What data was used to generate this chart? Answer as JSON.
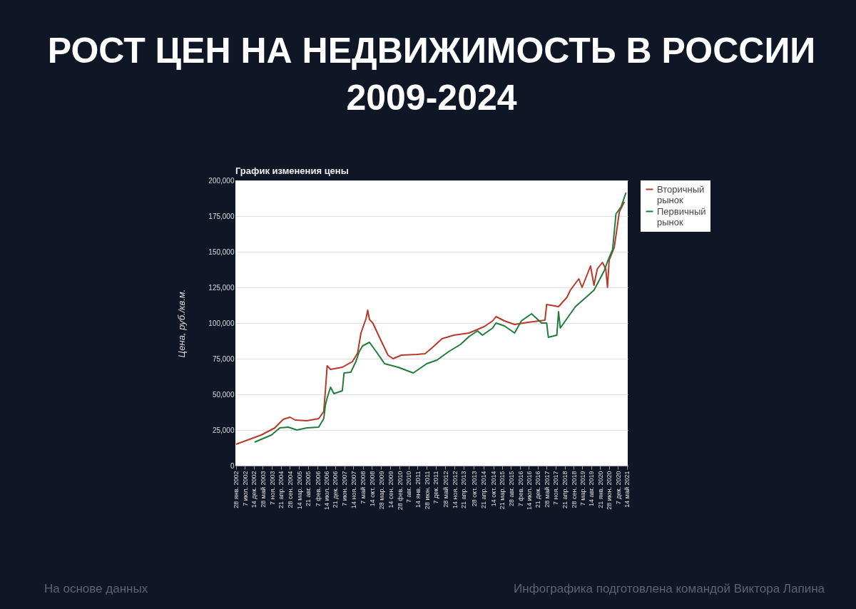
{
  "chart_data": {
    "type": "line",
    "title": "РОСТ ЦЕН НА НЕДВИЖИМОСТЬ В РОССИИ 2009-2024",
    "subtitle": "График изменения цены",
    "ylabel": "Цена, руб./кв.м.",
    "annotations": [
      "На основе данных",
      "Инфографика подготовлена командой Виктора Лапина"
    ],
    "legend": "top right",
    "grid": "y",
    "line_style": "solid",
    "marker": "none",
    "xlim": [
      "2002-01-20",
      "2021-06-01"
    ],
    "ylim": [
      0,
      200000
    ],
    "yticks": [
      {
        "value": 0,
        "label": "0"
      },
      {
        "value": 25000,
        "label": "25,000"
      },
      {
        "value": 50000,
        "label": "50,000"
      },
      {
        "value": 75000,
        "label": "75,000"
      },
      {
        "value": 100000,
        "label": "100,000"
      },
      {
        "value": 125000,
        "label": "125,000"
      },
      {
        "value": 150000,
        "label": "150,000"
      },
      {
        "value": 175000,
        "label": "175,000"
      },
      {
        "value": 200000,
        "label": "200,000"
      }
    ],
    "xticks": [
      {
        "value": "2002-01-28",
        "label": "28 янв. 2002"
      },
      {
        "value": "2002-07-07",
        "label": "7 июл. 2002"
      },
      {
        "value": "2002-12-14",
        "label": "14 дек. 2002"
      },
      {
        "value": "2003-05-28",
        "label": "28 май 2003"
      },
      {
        "value": "2003-11-07",
        "label": "7 ноя. 2003"
      },
      {
        "value": "2004-04-21",
        "label": "21 апр. 2004"
      },
      {
        "value": "2004-09-28",
        "label": "28 сен. 2004"
      },
      {
        "value": "2005-03-14",
        "label": "14 мар. 2005"
      },
      {
        "value": "2005-08-21",
        "label": "21 авг. 2005"
      },
      {
        "value": "2006-02-07",
        "label": "7 фев. 2006"
      },
      {
        "value": "2006-07-14",
        "label": "14 июл. 2006"
      },
      {
        "value": "2006-12-21",
        "label": "21 дек. 2006"
      },
      {
        "value": "2007-06-07",
        "label": "7 июн. 2007"
      },
      {
        "value": "2007-11-14",
        "label": "14 ноя. 2007"
      },
      {
        "value": "2008-05-07",
        "label": "7 май 2008"
      },
      {
        "value": "2008-10-14",
        "label": "14 окт. 2008"
      },
      {
        "value": "2009-03-28",
        "label": "28 мар. 2009"
      },
      {
        "value": "2009-09-14",
        "label": "14 сен. 2009"
      },
      {
        "value": "2010-02-28",
        "label": "28 фев. 2010"
      },
      {
        "value": "2010-08-07",
        "label": "7 авг. 2010"
      },
      {
        "value": "2011-01-14",
        "label": "14 янв. 2011"
      },
      {
        "value": "2011-06-28",
        "label": "28 июн. 2011"
      },
      {
        "value": "2011-12-07",
        "label": "7 дек. 2011"
      },
      {
        "value": "2012-05-28",
        "label": "28 май 2012"
      },
      {
        "value": "2012-11-14",
        "label": "14 ноя. 2012"
      },
      {
        "value": "2013-04-21",
        "label": "21 апр. 2013"
      },
      {
        "value": "2013-10-28",
        "label": "28 окт. 2013"
      },
      {
        "value": "2014-04-21",
        "label": "21 апр. 2014"
      },
      {
        "value": "2014-10-14",
        "label": "14 окт. 2014"
      },
      {
        "value": "2015-03-21",
        "label": "21 мар. 2015"
      },
      {
        "value": "2015-08-28",
        "label": "28 авг. 2015"
      },
      {
        "value": "2016-02-07",
        "label": "7 фев. 2016"
      },
      {
        "value": "2016-07-14",
        "label": "14 июл. 2016"
      },
      {
        "value": "2016-12-21",
        "label": "21 дек. 2016"
      },
      {
        "value": "2017-05-28",
        "label": "28 май 2017"
      },
      {
        "value": "2017-11-07",
        "label": "7 ноя. 2017"
      },
      {
        "value": "2018-04-21",
        "label": "21 апр. 2018"
      },
      {
        "value": "2018-09-28",
        "label": "28 сен. 2018"
      },
      {
        "value": "2019-03-07",
        "label": "7 мар. 2019"
      },
      {
        "value": "2019-08-14",
        "label": "14 авг. 2019"
      },
      {
        "value": "2020-01-21",
        "label": "21 янв. 2020"
      },
      {
        "value": "2020-06-28",
        "label": "28 июн. 2020"
      },
      {
        "value": "2020-12-07",
        "label": "7 дек. 2020"
      },
      {
        "value": "2021-05-14",
        "label": "14 май 2021"
      }
    ],
    "series": [
      {
        "name": "Вторичный рынок",
        "color": "#b8382a",
        "x": [
          "2002-02",
          "2003-05",
          "2004-01",
          "2004-06",
          "2004-10",
          "2005-01",
          "2005-08",
          "2006-03",
          "2006-06",
          "2006-07",
          "2006-08",
          "2006-10",
          "2007-05",
          "2007-11",
          "2008-02",
          "2008-04",
          "2008-07",
          "2008-08",
          "2008-09",
          "2008-11",
          "2009-03",
          "2009-08",
          "2009-11",
          "2010-04",
          "2011-01",
          "2011-06",
          "2011-10",
          "2012-04",
          "2012-11",
          "2013-08",
          "2014-05",
          "2014-10",
          "2014-12",
          "2015-05",
          "2015-11",
          "2016-07",
          "2017-05",
          "2017-06",
          "2018-01",
          "2018-06",
          "2018-08",
          "2019-01",
          "2019-03",
          "2019-08",
          "2019-10",
          "2019-12",
          "2020-03",
          "2020-05",
          "2020-06",
          "2020-07",
          "2020-10",
          "2021-01",
          "2021-04"
        ],
        "values": [
          15000,
          21500,
          26500,
          32500,
          34000,
          32000,
          31500,
          33000,
          38000,
          53000,
          70000,
          67500,
          69000,
          73000,
          79000,
          93000,
          103000,
          109000,
          102500,
          100000,
          90000,
          77500,
          75000,
          77500,
          78000,
          78500,
          82500,
          89000,
          91500,
          93000,
          97500,
          101500,
          104500,
          101500,
          99000,
          100500,
          102000,
          113000,
          111500,
          118000,
          123000,
          131000,
          125000,
          140000,
          126500,
          138000,
          142500,
          138000,
          125000,
          144000,
          153000,
          178000,
          185000
        ]
      },
      {
        "name": "Первичный рынок",
        "color": "#1f7d3c",
        "x": [
          "2003-01",
          "2003-11",
          "2004-04",
          "2004-09",
          "2005-02",
          "2005-08",
          "2006-03",
          "2006-06",
          "2006-07",
          "2006-08",
          "2006-10",
          "2006-12",
          "2007-05",
          "2007-06",
          "2007-10",
          "2008-01",
          "2008-03",
          "2008-05",
          "2008-09",
          "2009-01",
          "2009-06",
          "2010-02",
          "2010-11",
          "2011-07",
          "2012-01",
          "2012-08",
          "2013-03",
          "2013-08",
          "2014-01",
          "2014-04",
          "2014-10",
          "2014-12",
          "2015-05",
          "2015-11",
          "2016-03",
          "2016-09",
          "2017-03",
          "2017-06",
          "2017-07",
          "2017-12",
          "2018-01",
          "2018-02",
          "2018-11",
          "2019-10",
          "2020-04",
          "2020-06",
          "2020-09",
          "2020-11",
          "2021-02",
          "2021-05"
        ],
        "values": [
          16500,
          21500,
          26500,
          27000,
          25000,
          26500,
          27000,
          33000,
          42500,
          47500,
          55000,
          50500,
          52500,
          65000,
          65500,
          73000,
          80000,
          84000,
          86500,
          80000,
          71500,
          69000,
          65000,
          71500,
          74000,
          80000,
          85000,
          90500,
          94500,
          91500,
          96500,
          100000,
          98000,
          93000,
          101500,
          106500,
          100000,
          100000,
          90000,
          91500,
          108000,
          96500,
          111500,
          123000,
          136500,
          143000,
          151500,
          176500,
          181500,
          191500
        ]
      }
    ]
  }
}
